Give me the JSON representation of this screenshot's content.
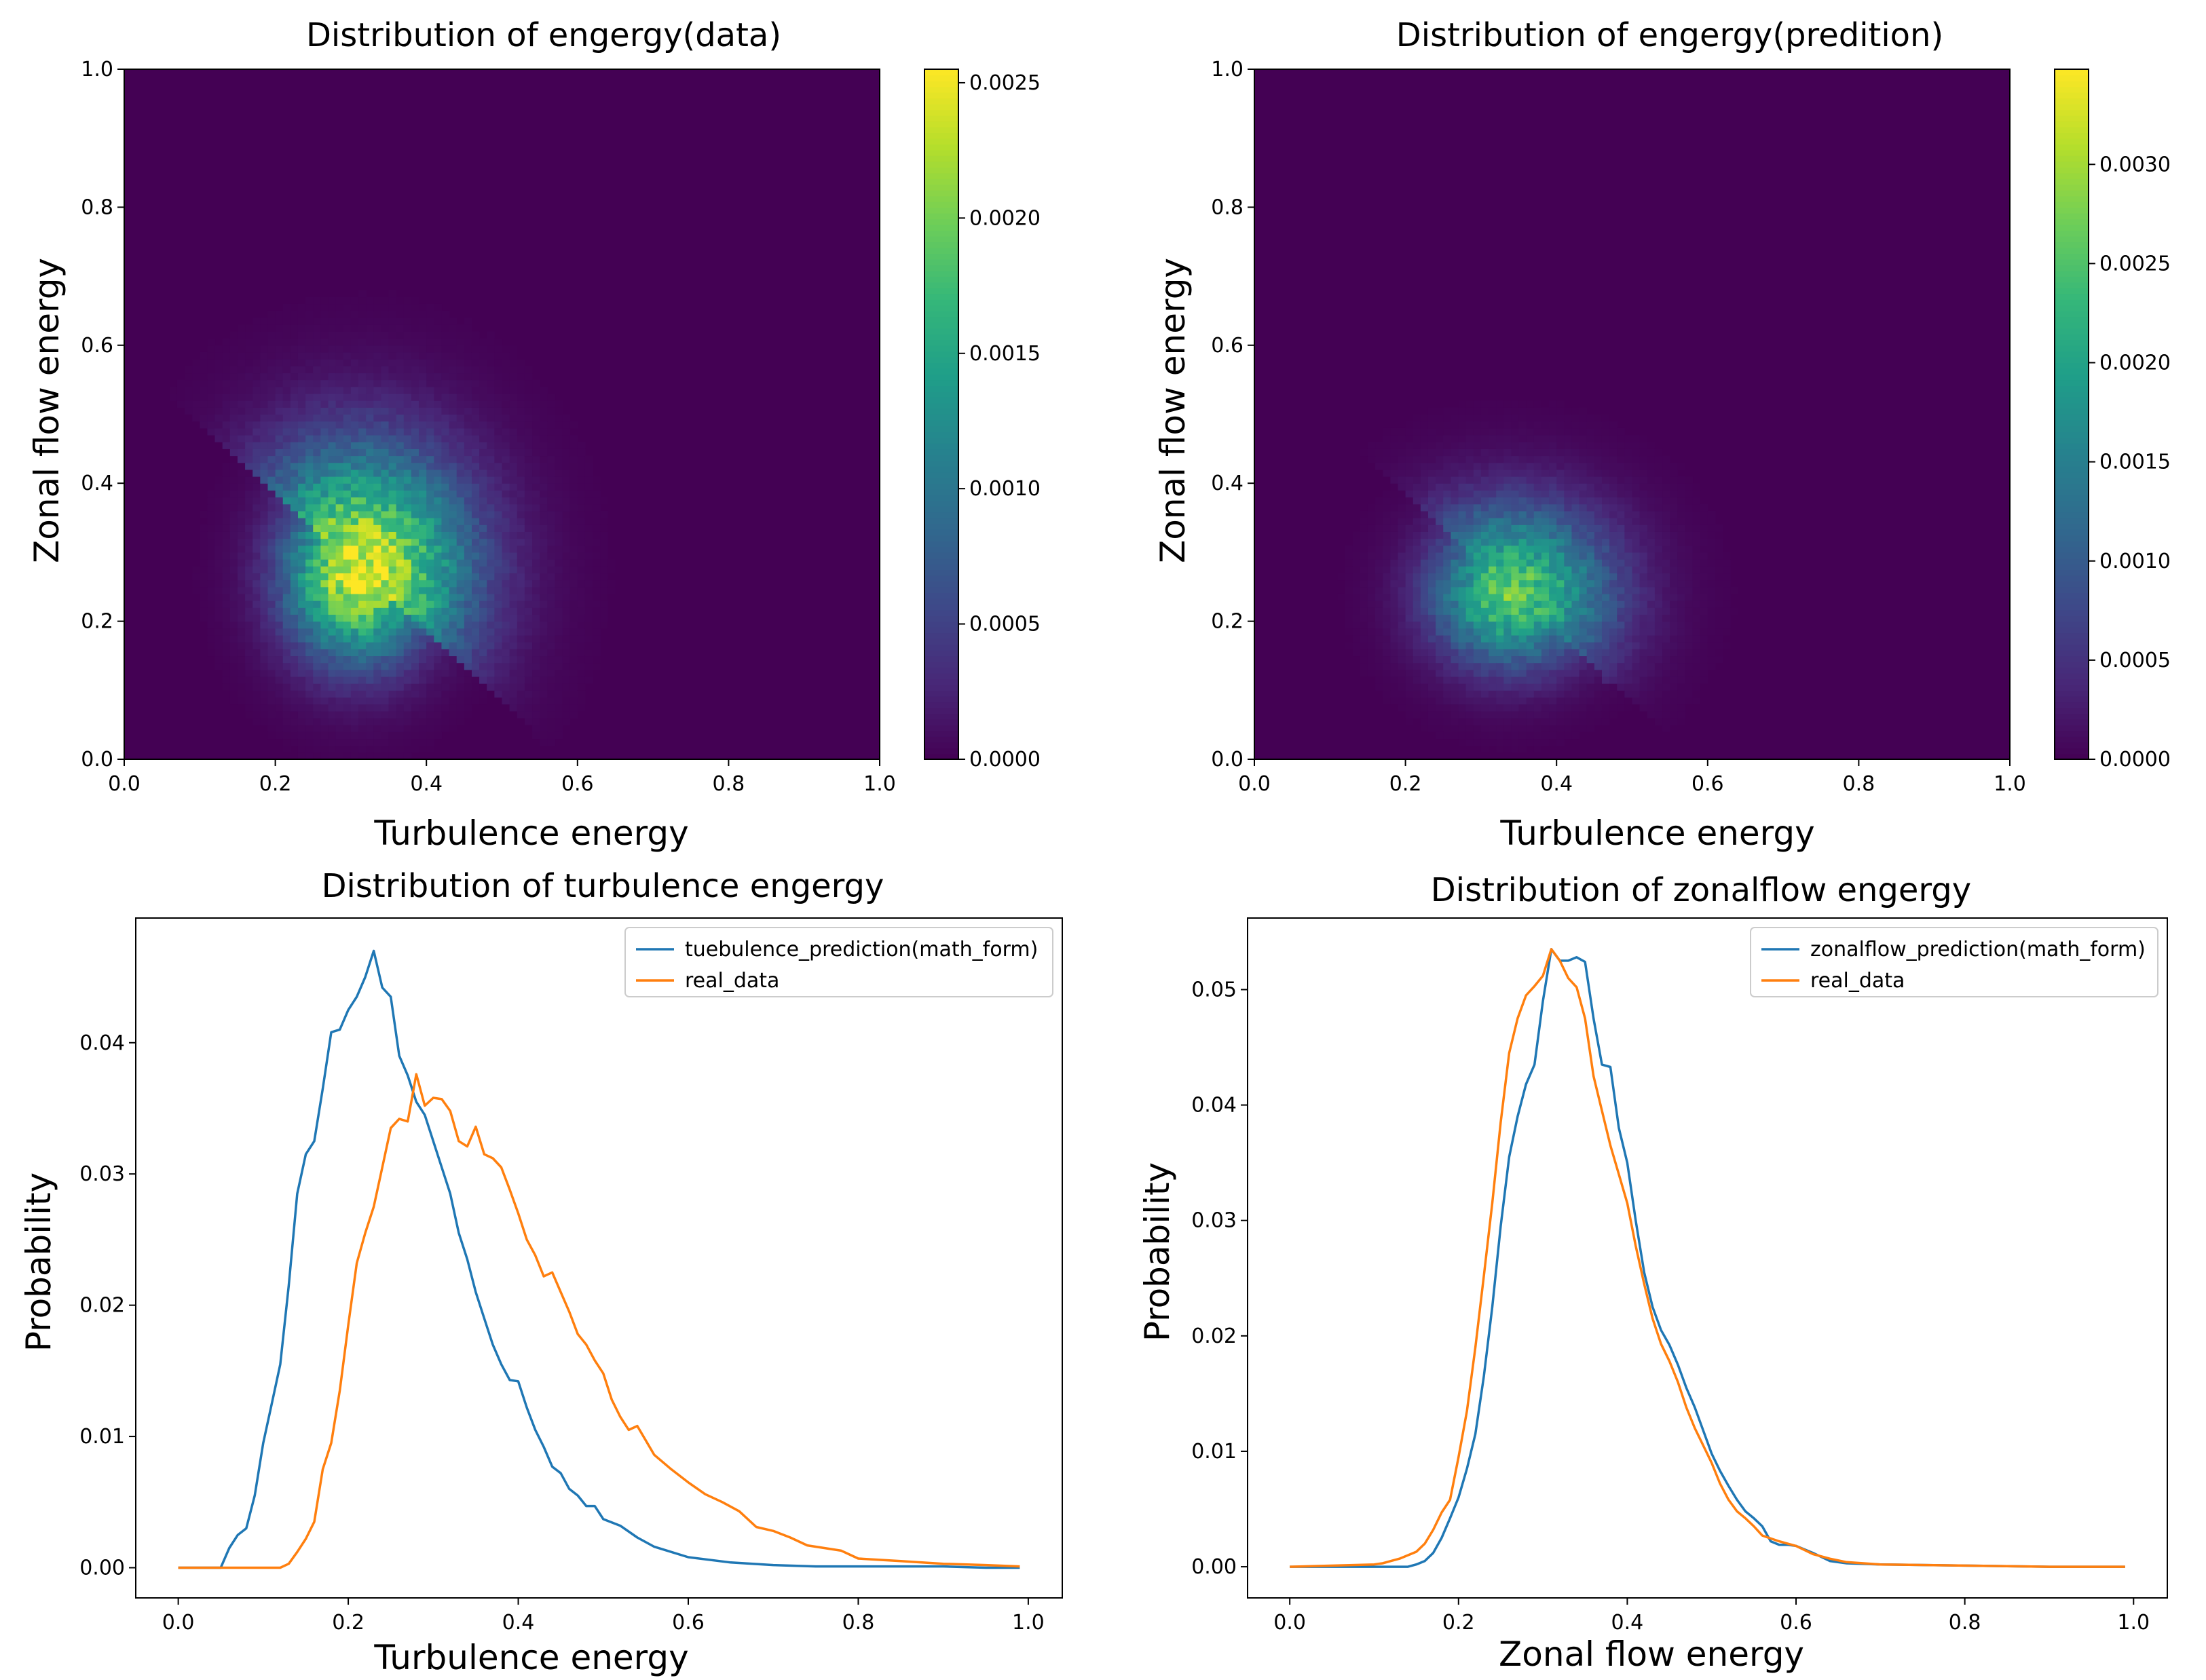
{
  "colors": {
    "series_prediction": "#1f77b4",
    "series_real": "#ff7f0e",
    "viridis": [
      "#440154",
      "#482878",
      "#3e4989",
      "#31688e",
      "#26828e",
      "#1f9e89",
      "#35b779",
      "#6ece58",
      "#b5de2b",
      "#fde725"
    ]
  },
  "chart_data": [
    {
      "type": "heatmap",
      "title": "Distribution of engergy(data)",
      "xlabel": "Turbulence energy",
      "ylabel": "Zonal flow energy",
      "xlim": [
        0.0,
        1.0
      ],
      "ylim": [
        0.0,
        1.0
      ],
      "xticks": [
        "0.0",
        "0.2",
        "0.4",
        "0.6",
        "0.8",
        "1.0"
      ],
      "yticks": [
        "0.0",
        "0.2",
        "0.4",
        "0.6",
        "0.8",
        "1.0"
      ],
      "xtick_values": [
        0.0,
        0.2,
        0.4,
        0.6,
        0.8,
        1.0
      ],
      "ytick_values": [
        0.0,
        0.2,
        0.4,
        0.6,
        0.8,
        1.0
      ],
      "colorbar": {
        "range": [
          0.0,
          0.00255
        ],
        "ticks": [
          "0.0000",
          "0.0005",
          "0.0010",
          "0.0015",
          "0.0020",
          "0.0025"
        ],
        "tick_values": [
          0.0,
          0.0005,
          0.001,
          0.0015,
          0.002,
          0.0025
        ]
      },
      "density_estimate": {
        "center": [
          0.31,
          0.27
        ],
        "sigma_x": 0.065,
        "sigma_y": 0.085,
        "skew": 0.55,
        "peak": 0.00245
      }
    },
    {
      "type": "heatmap",
      "title": "Distribution of engergy(predition)",
      "xlabel": "Turbulence energy",
      "ylabel": "Zonal flow energy",
      "xlim": [
        0.0,
        1.0
      ],
      "ylim": [
        0.0,
        1.0
      ],
      "xticks": [
        "0.0",
        "0.2",
        "0.4",
        "0.6",
        "0.8",
        "1.0"
      ],
      "yticks": [
        "0.0",
        "0.2",
        "0.4",
        "0.6",
        "0.8",
        "1.0"
      ],
      "xtick_values": [
        0.0,
        0.2,
        0.4,
        0.6,
        0.8,
        1.0
      ],
      "ytick_values": [
        0.0,
        0.2,
        0.4,
        0.6,
        0.8,
        1.0
      ],
      "colorbar": {
        "range": [
          0.0,
          0.00348
        ],
        "ticks": [
          "0.0000",
          "0.0005",
          "0.0010",
          "0.0015",
          "0.0020",
          "0.0025",
          "0.0030"
        ],
        "tick_values": [
          0.0,
          0.0005,
          0.001,
          0.0015,
          0.002,
          0.0025,
          0.003
        ]
      },
      "density_estimate": {
        "center": [
          0.34,
          0.24
        ],
        "sigma_x": 0.07,
        "sigma_y": 0.07,
        "skew": 0.3,
        "peak": 0.0026
      }
    },
    {
      "type": "line",
      "title": "Distribution of turbulence engergy",
      "xlabel": "Turbulence energy",
      "ylabel": "Probability",
      "xlim": [
        -0.05,
        1.04
      ],
      "ylim": [
        -0.0023,
        0.0495
      ],
      "xticks": [
        "0.0",
        "0.2",
        "0.4",
        "0.6",
        "0.8",
        "1.0"
      ],
      "xtick_values": [
        0.0,
        0.2,
        0.4,
        0.6,
        0.8,
        1.0
      ],
      "yticks": [
        "0.00",
        "0.01",
        "0.02",
        "0.03",
        "0.04"
      ],
      "ytick_values": [
        0.0,
        0.01,
        0.02,
        0.03,
        0.04
      ],
      "legend_position": "top-right",
      "series": [
        {
          "name": "tuebulence_prediction(math_form)",
          "color": "#1f77b4",
          "x": [
            0.0,
            0.05,
            0.06,
            0.07,
            0.08,
            0.09,
            0.1,
            0.11,
            0.12,
            0.13,
            0.14,
            0.15,
            0.16,
            0.17,
            0.18,
            0.19,
            0.2,
            0.21,
            0.22,
            0.23,
            0.24,
            0.25,
            0.26,
            0.27,
            0.28,
            0.29,
            0.3,
            0.31,
            0.32,
            0.33,
            0.34,
            0.35,
            0.36,
            0.37,
            0.38,
            0.39,
            0.4,
            0.41,
            0.42,
            0.43,
            0.44,
            0.45,
            0.46,
            0.47,
            0.48,
            0.49,
            0.5,
            0.52,
            0.54,
            0.56,
            0.6,
            0.65,
            0.7,
            0.75,
            0.8,
            0.85,
            0.9,
            0.95,
            0.99
          ],
          "values": [
            0.0,
            0.0,
            0.0015,
            0.0025,
            0.003,
            0.0055,
            0.0095,
            0.0125,
            0.0155,
            0.0215,
            0.0285,
            0.0315,
            0.0325,
            0.0365,
            0.0408,
            0.041,
            0.0425,
            0.0435,
            0.045,
            0.047,
            0.0442,
            0.0435,
            0.039,
            0.0375,
            0.0355,
            0.0345,
            0.0325,
            0.0305,
            0.0285,
            0.0255,
            0.0235,
            0.021,
            0.019,
            0.017,
            0.0155,
            0.0143,
            0.0142,
            0.0122,
            0.0105,
            0.0092,
            0.0077,
            0.0072,
            0.006,
            0.0055,
            0.0047,
            0.0047,
            0.0037,
            0.0032,
            0.0023,
            0.0016,
            0.0008,
            0.0004,
            0.0002,
            0.0001,
            0.0001,
            0.0001,
            0.0001,
            0.0,
            0.0
          ]
        },
        {
          "name": "real_data",
          "color": "#ff7f0e",
          "x": [
            0.0,
            0.12,
            0.13,
            0.14,
            0.15,
            0.16,
            0.17,
            0.18,
            0.19,
            0.2,
            0.21,
            0.22,
            0.23,
            0.24,
            0.25,
            0.26,
            0.27,
            0.28,
            0.29,
            0.3,
            0.31,
            0.32,
            0.33,
            0.34,
            0.35,
            0.36,
            0.37,
            0.38,
            0.39,
            0.4,
            0.41,
            0.42,
            0.43,
            0.44,
            0.45,
            0.46,
            0.47,
            0.48,
            0.49,
            0.5,
            0.51,
            0.52,
            0.53,
            0.54,
            0.56,
            0.58,
            0.6,
            0.62,
            0.64,
            0.66,
            0.68,
            0.7,
            0.72,
            0.74,
            0.76,
            0.78,
            0.8,
            0.85,
            0.9,
            0.95,
            0.99
          ],
          "values": [
            0.0,
            0.0,
            0.0003,
            0.0012,
            0.0022,
            0.0035,
            0.0075,
            0.0095,
            0.0135,
            0.0185,
            0.0232,
            0.0255,
            0.0275,
            0.0305,
            0.0335,
            0.0342,
            0.034,
            0.0376,
            0.0352,
            0.0358,
            0.0357,
            0.0348,
            0.0325,
            0.0321,
            0.0336,
            0.0315,
            0.0312,
            0.0305,
            0.0288,
            0.027,
            0.025,
            0.0238,
            0.0222,
            0.0225,
            0.021,
            0.0195,
            0.0178,
            0.017,
            0.0158,
            0.0148,
            0.0128,
            0.0115,
            0.0105,
            0.0108,
            0.0086,
            0.0075,
            0.0065,
            0.0056,
            0.005,
            0.0043,
            0.0031,
            0.0028,
            0.0023,
            0.0017,
            0.0015,
            0.0013,
            0.0007,
            0.0005,
            0.0003,
            0.0002,
            0.0001
          ]
        }
      ]
    },
    {
      "type": "line",
      "title": "Distribution of zonalflow engergy",
      "xlabel": "Zonal flow energy",
      "ylabel": "Probability",
      "xlim": [
        -0.05,
        1.04
      ],
      "ylim": [
        -0.0027,
        0.0562
      ],
      "xticks": [
        "0.0",
        "0.2",
        "0.4",
        "0.6",
        "0.8",
        "1.0"
      ],
      "xtick_values": [
        0.0,
        0.2,
        0.4,
        0.6,
        0.8,
        1.0
      ],
      "yticks": [
        "0.00",
        "0.01",
        "0.02",
        "0.03",
        "0.04",
        "0.05"
      ],
      "ytick_values": [
        0.0,
        0.01,
        0.02,
        0.03,
        0.04,
        0.05
      ],
      "legend_position": "top-right",
      "series": [
        {
          "name": "zonalflow_prediction(math_form)",
          "color": "#1f77b4",
          "x": [
            0.0,
            0.14,
            0.15,
            0.16,
            0.17,
            0.18,
            0.19,
            0.2,
            0.21,
            0.22,
            0.23,
            0.24,
            0.25,
            0.26,
            0.27,
            0.28,
            0.29,
            0.3,
            0.31,
            0.32,
            0.33,
            0.34,
            0.35,
            0.36,
            0.37,
            0.38,
            0.39,
            0.4,
            0.41,
            0.42,
            0.43,
            0.44,
            0.45,
            0.46,
            0.47,
            0.48,
            0.49,
            0.5,
            0.51,
            0.52,
            0.53,
            0.54,
            0.55,
            0.56,
            0.57,
            0.58,
            0.59,
            0.6,
            0.62,
            0.64,
            0.66,
            0.7,
            0.8,
            0.9,
            0.99
          ],
          "values": [
            0.0,
            0.0,
            0.0002,
            0.0005,
            0.0012,
            0.0025,
            0.0042,
            0.006,
            0.0085,
            0.0115,
            0.0165,
            0.0225,
            0.0295,
            0.0355,
            0.039,
            0.0418,
            0.0435,
            0.049,
            0.0535,
            0.0525,
            0.0525,
            0.0528,
            0.0524,
            0.0475,
            0.0435,
            0.0433,
            0.038,
            0.035,
            0.03,
            0.0255,
            0.0225,
            0.0205,
            0.0192,
            0.0175,
            0.0155,
            0.0138,
            0.0118,
            0.0098,
            0.0083,
            0.007,
            0.0058,
            0.0048,
            0.0042,
            0.0035,
            0.0022,
            0.0019,
            0.0019,
            0.0018,
            0.0012,
            0.0005,
            0.0003,
            0.0002,
            0.0001,
            0.0,
            0.0
          ]
        },
        {
          "name": "real_data",
          "color": "#ff7f0e",
          "x": [
            0.0,
            0.1,
            0.11,
            0.12,
            0.13,
            0.14,
            0.15,
            0.16,
            0.17,
            0.18,
            0.19,
            0.2,
            0.21,
            0.22,
            0.23,
            0.24,
            0.25,
            0.26,
            0.27,
            0.28,
            0.29,
            0.3,
            0.31,
            0.32,
            0.33,
            0.34,
            0.35,
            0.36,
            0.37,
            0.38,
            0.39,
            0.4,
            0.41,
            0.42,
            0.43,
            0.44,
            0.45,
            0.46,
            0.47,
            0.48,
            0.49,
            0.5,
            0.51,
            0.52,
            0.53,
            0.54,
            0.55,
            0.56,
            0.58,
            0.6,
            0.62,
            0.64,
            0.66,
            0.7,
            0.8,
            0.9,
            0.99
          ],
          "values": [
            0.0,
            0.0002,
            0.0003,
            0.0005,
            0.0007,
            0.001,
            0.0013,
            0.002,
            0.0032,
            0.0047,
            0.0058,
            0.0095,
            0.0135,
            0.019,
            0.0252,
            0.0315,
            0.0385,
            0.0445,
            0.0475,
            0.0495,
            0.0503,
            0.0512,
            0.0535,
            0.0525,
            0.051,
            0.0502,
            0.0475,
            0.0425,
            0.0395,
            0.0365,
            0.034,
            0.0315,
            0.0278,
            0.0245,
            0.0215,
            0.0193,
            0.0178,
            0.016,
            0.0138,
            0.012,
            0.0105,
            0.009,
            0.0072,
            0.0058,
            0.0048,
            0.0042,
            0.0035,
            0.0027,
            0.0022,
            0.0018,
            0.0011,
            0.0007,
            0.0004,
            0.0002,
            0.0001,
            0.0,
            0.0
          ]
        }
      ]
    }
  ]
}
